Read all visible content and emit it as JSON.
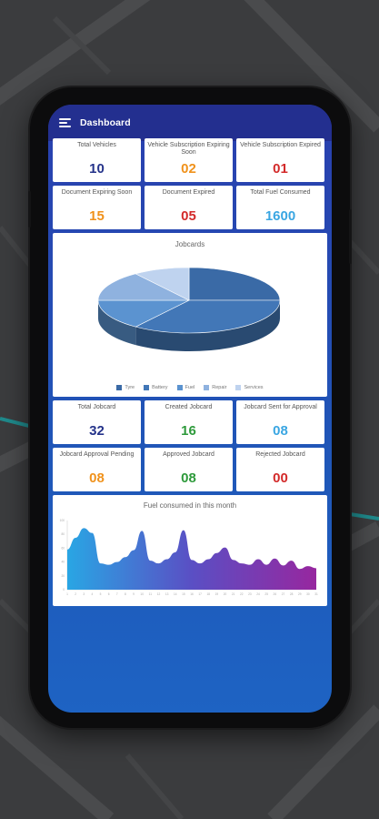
{
  "app": {
    "title": "Dashboard"
  },
  "summary_cards": [
    {
      "label": "Total Vehicles",
      "value": "10",
      "color": "#25338a"
    },
    {
      "label": "Vehicle Subscription Expiring Soon",
      "value": "02",
      "color": "#f0921c"
    },
    {
      "label": "Vehicle Subscription Expired",
      "value": "01",
      "color": "#d32a2a"
    },
    {
      "label": "Document Expiring Soon",
      "value": "15",
      "color": "#f0921c"
    },
    {
      "label": "Document Expired",
      "value": "05",
      "color": "#d32a2a"
    },
    {
      "label": "Total Fuel Consumed",
      "value": "1600",
      "color": "#3aa6e2"
    }
  ],
  "jobcard_cards": [
    {
      "label": "Total Jobcard",
      "value": "32",
      "color": "#25338a"
    },
    {
      "label": "Created Jobcard",
      "value": "16",
      "color": "#2e9a3b"
    },
    {
      "label": "Jobcard Sent for Approval",
      "value": "08",
      "color": "#3aa6e2"
    },
    {
      "label": "Jobcard Approval Pending",
      "value": "08",
      "color": "#f0921c"
    },
    {
      "label": "Approved Jobcard",
      "value": "08",
      "color": "#2e9a3b"
    },
    {
      "label": "Rejected Jobcard",
      "value": "00",
      "color": "#d32a2a"
    }
  ],
  "chart_data": [
    {
      "type": "pie",
      "title": "Jobcards",
      "categories": [
        "Tyre",
        "Battery",
        "Fuel",
        "Repair",
        "Services"
      ],
      "values": [
        25,
        35,
        15,
        15,
        10
      ],
      "colors": [
        "#3a6aa6",
        "#4277b7",
        "#5b93d0",
        "#8fb2df",
        "#bfd3ef"
      ],
      "legend_position": "bottom"
    },
    {
      "type": "area",
      "title": "Fuel consumed in this month",
      "x": [
        1,
        2,
        3,
        4,
        5,
        6,
        7,
        8,
        9,
        10,
        11,
        12,
        13,
        14,
        15,
        16,
        17,
        18,
        19,
        20,
        21,
        22,
        23,
        24,
        25,
        26,
        27,
        28,
        29,
        30,
        31
      ],
      "values": [
        58,
        75,
        89,
        82,
        38,
        36,
        40,
        47,
        57,
        85,
        42,
        38,
        44,
        54,
        86,
        43,
        38,
        44,
        53,
        61,
        43,
        38,
        36,
        44,
        36,
        45,
        35,
        42,
        30,
        34,
        31
      ],
      "ylim": [
        0,
        100
      ],
      "gradient": [
        "#29a6e4",
        "#5a4fc4",
        "#97279f"
      ]
    }
  ]
}
